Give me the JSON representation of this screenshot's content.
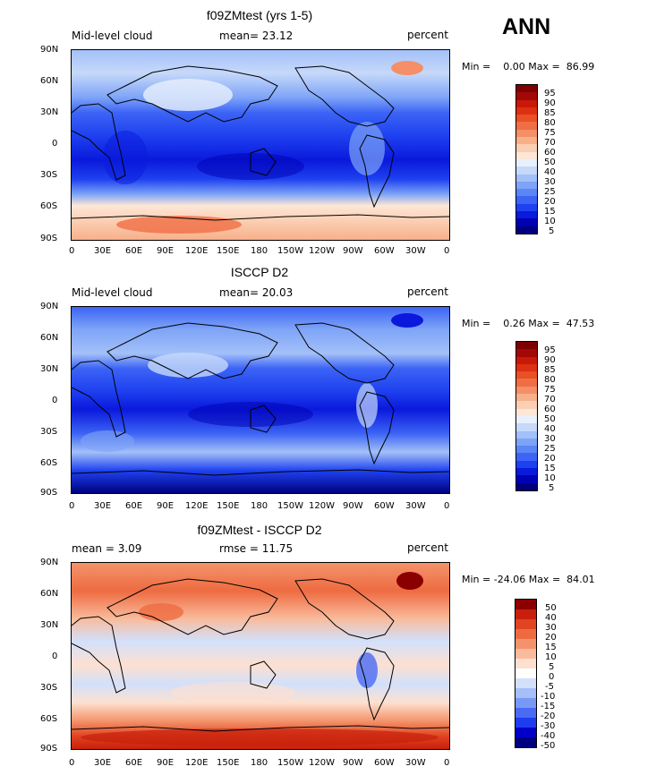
{
  "season": "ANN",
  "lat_labels": [
    "90N",
    "60N",
    "30N",
    "0",
    "30S",
    "60S",
    "90S"
  ],
  "lon_labels": [
    "0",
    "30E",
    "60E",
    "90E",
    "120E",
    "150E",
    "180",
    "150W",
    "120W",
    "90W",
    "60W",
    "30W",
    "0"
  ],
  "palette_pos": [
    "#00007f",
    "#0000b4",
    "#0a19dc",
    "#1e41f0",
    "#3c64f5",
    "#5a87f5",
    "#7ea4f7",
    "#a3c0f8",
    "#c6d9fa",
    "#e8f0fc",
    "#fde7d6",
    "#fbcfb3",
    "#f8b08b",
    "#f58f67",
    "#f06e45",
    "#ea4f26",
    "#dd3013",
    "#c81808",
    "#a20808",
    "#7f0000"
  ],
  "palette_diff": [
    "#00007f",
    "#0000c8",
    "#1e3cf0",
    "#4a6af5",
    "#7898f7",
    "#a6bef9",
    "#d2e0fb",
    "#ffffff",
    "#fde0d0",
    "#f9bb9c",
    "#f4936b",
    "#ee6b41",
    "#e04421",
    "#c8200c",
    "#8a0000"
  ],
  "panels": [
    {
      "title": "f09ZMtest (yrs 1-5)",
      "left_label": "Mid-level cloud",
      "middle_label": "mean=   23.12",
      "units": "percent",
      "min_label": "Min =",
      "min_value": "0.00",
      "max_label": "Max =",
      "max_value": "86.99",
      "colorbar_labels": [
        "95",
        "90",
        "85",
        "80",
        "75",
        "70",
        "60",
        "50",
        "40",
        "30",
        "25",
        "20",
        "15",
        "10",
        "5"
      ]
    },
    {
      "title": "ISCCP D2",
      "left_label": "Mid-level cloud",
      "middle_label": "mean=   20.03",
      "units": "percent",
      "min_label": "Min =",
      "min_value": "0.26",
      "max_label": "Max =",
      "max_value": "47.53",
      "colorbar_labels": [
        "95",
        "90",
        "85",
        "80",
        "75",
        "70",
        "60",
        "50",
        "40",
        "30",
        "25",
        "20",
        "15",
        "10",
        "5"
      ]
    },
    {
      "title": "f09ZMtest - ISCCP D2",
      "left_label": "mean =    3.09",
      "middle_label": "rmse =   11.75",
      "units": "percent",
      "min_label": "Min =",
      "min_value": "-24.06",
      "max_label": "Max =",
      "max_value": "84.01",
      "colorbar_labels": [
        "50",
        "40",
        "30",
        "20",
        "15",
        "10",
        "5",
        "0",
        "-5",
        "-10",
        "-15",
        "-20",
        "-30",
        "-40",
        "-50"
      ]
    }
  ]
}
